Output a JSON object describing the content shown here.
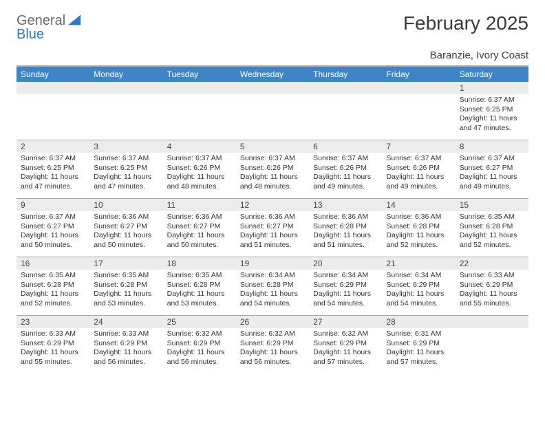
{
  "logo": {
    "word1": "General",
    "word2": "Blue"
  },
  "colors": {
    "header_bg": "#3d85c6",
    "header_text": "#ffffff",
    "daynum_bg": "#ececec",
    "divider": "#a8a8a8",
    "logo_gray": "#6a6a6a",
    "logo_blue": "#2b7bbf",
    "text": "#333333"
  },
  "title": "February 2025",
  "location": "Baranzie, Ivory Coast",
  "weekdays": [
    "Sunday",
    "Monday",
    "Tuesday",
    "Wednesday",
    "Thursday",
    "Friday",
    "Saturday"
  ],
  "weeks": [
    [
      {
        "n": "",
        "empty": true
      },
      {
        "n": "",
        "empty": true
      },
      {
        "n": "",
        "empty": true
      },
      {
        "n": "",
        "empty": true
      },
      {
        "n": "",
        "empty": true
      },
      {
        "n": "",
        "empty": true
      },
      {
        "n": "1",
        "sunrise": "Sunrise: 6:37 AM",
        "sunset": "Sunset: 6:25 PM",
        "daylight1": "Daylight: 11 hours",
        "daylight2": "and 47 minutes."
      }
    ],
    [
      {
        "n": "2",
        "sunrise": "Sunrise: 6:37 AM",
        "sunset": "Sunset: 6:25 PM",
        "daylight1": "Daylight: 11 hours",
        "daylight2": "and 47 minutes."
      },
      {
        "n": "3",
        "sunrise": "Sunrise: 6:37 AM",
        "sunset": "Sunset: 6:25 PM",
        "daylight1": "Daylight: 11 hours",
        "daylight2": "and 47 minutes."
      },
      {
        "n": "4",
        "sunrise": "Sunrise: 6:37 AM",
        "sunset": "Sunset: 6:26 PM",
        "daylight1": "Daylight: 11 hours",
        "daylight2": "and 48 minutes."
      },
      {
        "n": "5",
        "sunrise": "Sunrise: 6:37 AM",
        "sunset": "Sunset: 6:26 PM",
        "daylight1": "Daylight: 11 hours",
        "daylight2": "and 48 minutes."
      },
      {
        "n": "6",
        "sunrise": "Sunrise: 6:37 AM",
        "sunset": "Sunset: 6:26 PM",
        "daylight1": "Daylight: 11 hours",
        "daylight2": "and 49 minutes."
      },
      {
        "n": "7",
        "sunrise": "Sunrise: 6:37 AM",
        "sunset": "Sunset: 6:26 PM",
        "daylight1": "Daylight: 11 hours",
        "daylight2": "and 49 minutes."
      },
      {
        "n": "8",
        "sunrise": "Sunrise: 6:37 AM",
        "sunset": "Sunset: 6:27 PM",
        "daylight1": "Daylight: 11 hours",
        "daylight2": "and 49 minutes."
      }
    ],
    [
      {
        "n": "9",
        "sunrise": "Sunrise: 6:37 AM",
        "sunset": "Sunset: 6:27 PM",
        "daylight1": "Daylight: 11 hours",
        "daylight2": "and 50 minutes."
      },
      {
        "n": "10",
        "sunrise": "Sunrise: 6:36 AM",
        "sunset": "Sunset: 6:27 PM",
        "daylight1": "Daylight: 11 hours",
        "daylight2": "and 50 minutes."
      },
      {
        "n": "11",
        "sunrise": "Sunrise: 6:36 AM",
        "sunset": "Sunset: 6:27 PM",
        "daylight1": "Daylight: 11 hours",
        "daylight2": "and 50 minutes."
      },
      {
        "n": "12",
        "sunrise": "Sunrise: 6:36 AM",
        "sunset": "Sunset: 6:27 PM",
        "daylight1": "Daylight: 11 hours",
        "daylight2": "and 51 minutes."
      },
      {
        "n": "13",
        "sunrise": "Sunrise: 6:36 AM",
        "sunset": "Sunset: 6:28 PM",
        "daylight1": "Daylight: 11 hours",
        "daylight2": "and 51 minutes."
      },
      {
        "n": "14",
        "sunrise": "Sunrise: 6:36 AM",
        "sunset": "Sunset: 6:28 PM",
        "daylight1": "Daylight: 11 hours",
        "daylight2": "and 52 minutes."
      },
      {
        "n": "15",
        "sunrise": "Sunrise: 6:35 AM",
        "sunset": "Sunset: 6:28 PM",
        "daylight1": "Daylight: 11 hours",
        "daylight2": "and 52 minutes."
      }
    ],
    [
      {
        "n": "16",
        "sunrise": "Sunrise: 6:35 AM",
        "sunset": "Sunset: 6:28 PM",
        "daylight1": "Daylight: 11 hours",
        "daylight2": "and 52 minutes."
      },
      {
        "n": "17",
        "sunrise": "Sunrise: 6:35 AM",
        "sunset": "Sunset: 6:28 PM",
        "daylight1": "Daylight: 11 hours",
        "daylight2": "and 53 minutes."
      },
      {
        "n": "18",
        "sunrise": "Sunrise: 6:35 AM",
        "sunset": "Sunset: 6:28 PM",
        "daylight1": "Daylight: 11 hours",
        "daylight2": "and 53 minutes."
      },
      {
        "n": "19",
        "sunrise": "Sunrise: 6:34 AM",
        "sunset": "Sunset: 6:28 PM",
        "daylight1": "Daylight: 11 hours",
        "daylight2": "and 54 minutes."
      },
      {
        "n": "20",
        "sunrise": "Sunrise: 6:34 AM",
        "sunset": "Sunset: 6:29 PM",
        "daylight1": "Daylight: 11 hours",
        "daylight2": "and 54 minutes."
      },
      {
        "n": "21",
        "sunrise": "Sunrise: 6:34 AM",
        "sunset": "Sunset: 6:29 PM",
        "daylight1": "Daylight: 11 hours",
        "daylight2": "and 54 minutes."
      },
      {
        "n": "22",
        "sunrise": "Sunrise: 6:33 AM",
        "sunset": "Sunset: 6:29 PM",
        "daylight1": "Daylight: 11 hours",
        "daylight2": "and 55 minutes."
      }
    ],
    [
      {
        "n": "23",
        "sunrise": "Sunrise: 6:33 AM",
        "sunset": "Sunset: 6:29 PM",
        "daylight1": "Daylight: 11 hours",
        "daylight2": "and 55 minutes."
      },
      {
        "n": "24",
        "sunrise": "Sunrise: 6:33 AM",
        "sunset": "Sunset: 6:29 PM",
        "daylight1": "Daylight: 11 hours",
        "daylight2": "and 56 minutes."
      },
      {
        "n": "25",
        "sunrise": "Sunrise: 6:32 AM",
        "sunset": "Sunset: 6:29 PM",
        "daylight1": "Daylight: 11 hours",
        "daylight2": "and 56 minutes."
      },
      {
        "n": "26",
        "sunrise": "Sunrise: 6:32 AM",
        "sunset": "Sunset: 6:29 PM",
        "daylight1": "Daylight: 11 hours",
        "daylight2": "and 56 minutes."
      },
      {
        "n": "27",
        "sunrise": "Sunrise: 6:32 AM",
        "sunset": "Sunset: 6:29 PM",
        "daylight1": "Daylight: 11 hours",
        "daylight2": "and 57 minutes."
      },
      {
        "n": "28",
        "sunrise": "Sunrise: 6:31 AM",
        "sunset": "Sunset: 6:29 PM",
        "daylight1": "Daylight: 11 hours",
        "daylight2": "and 57 minutes."
      },
      {
        "n": "",
        "empty": true
      }
    ]
  ]
}
